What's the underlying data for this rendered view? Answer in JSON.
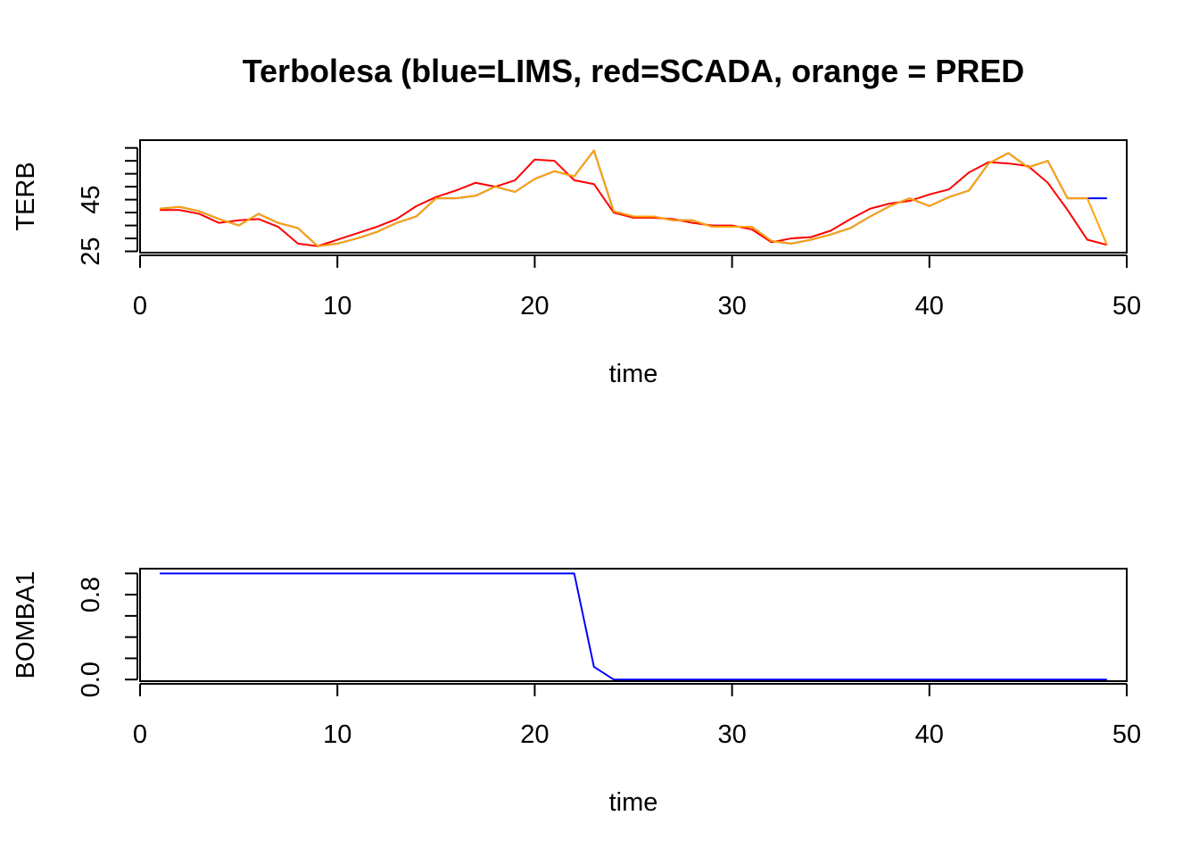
{
  "title": "Terbolesa (blue=LIMS, red=SCADA, orange = PRED",
  "chart_data": [
    {
      "type": "line",
      "xlabel": "time",
      "ylabel": "TERB",
      "xlim": [
        0,
        50
      ],
      "ylim": [
        24.5,
        68
      ],
      "xticks": [
        0,
        10,
        20,
        30,
        40,
        50
      ],
      "yticks": [
        25,
        30,
        35,
        40,
        45,
        50,
        55,
        60,
        65
      ],
      "ytick_labels": [
        {
          "value": 25,
          "label": "25"
        },
        {
          "value": 45,
          "label": "45"
        }
      ],
      "x": [
        1,
        2,
        3,
        4,
        5,
        6,
        7,
        8,
        9,
        10,
        11,
        12,
        13,
        14,
        15,
        16,
        17,
        18,
        19,
        20,
        21,
        22,
        23,
        24,
        25,
        26,
        27,
        28,
        29,
        30,
        31,
        32,
        33,
        34,
        35,
        36,
        37,
        38,
        39,
        40,
        41,
        42,
        43,
        44,
        45,
        46,
        47,
        48,
        49
      ],
      "series": [
        {
          "name": "LIMS",
          "color": "#0000ff",
          "values": [
            41.5,
            42.2,
            40.5,
            37.5,
            35,
            39.5,
            36,
            34,
            27,
            28,
            30,
            32.5,
            36,
            38.5,
            45.5,
            45.5,
            46.5,
            50,
            48,
            53,
            56,
            54,
            64,
            40.5,
            38.5,
            38.5,
            37,
            37,
            34.5,
            34.5,
            34.5,
            29,
            28,
            29.5,
            31.5,
            34,
            38.5,
            42.5,
            45.5,
            42.5,
            46,
            48.5,
            59,
            63,
            57.5,
            60,
            45.5,
            45.5,
            45.5
          ]
        },
        {
          "name": "SCADA",
          "color": "#ff0000",
          "values": [
            41,
            41,
            39.5,
            36,
            37,
            37.5,
            34.5,
            28,
            27,
            29.5,
            32,
            34.5,
            37.5,
            42.5,
            46,
            48.5,
            51.5,
            50,
            52.5,
            60.5,
            60,
            52.5,
            51,
            40,
            38,
            38,
            37.5,
            36,
            35,
            35,
            33.5,
            28.5,
            30,
            30.5,
            33,
            37.5,
            41.5,
            43.5,
            44.5,
            47,
            49,
            55.5,
            59.5,
            59,
            58,
            51.5,
            41,
            29.5,
            27.5
          ]
        },
        {
          "name": "PRED",
          "color": "#ffa500",
          "values": [
            41.5,
            42.2,
            40.5,
            37.5,
            35,
            39.5,
            36,
            34,
            27,
            28,
            30,
            32.5,
            36,
            38.5,
            45.5,
            45.5,
            46.5,
            50,
            48,
            53,
            56,
            54,
            64,
            40.5,
            38.5,
            38.5,
            37,
            37,
            34.5,
            34.5,
            34.5,
            29,
            28,
            29.5,
            31.5,
            34,
            38.5,
            42.5,
            45.5,
            42.5,
            46,
            48.5,
            59,
            63,
            57.5,
            60,
            45.5,
            45.5,
            27.5
          ]
        }
      ]
    },
    {
      "type": "line",
      "xlabel": "time",
      "ylabel": "BOMBA1",
      "xlim": [
        0,
        50
      ],
      "ylim": [
        -0.015,
        1.045
      ],
      "xticks": [
        0,
        10,
        20,
        30,
        40,
        50
      ],
      "yticks": [
        0,
        0.2,
        0.4,
        0.6,
        0.8,
        1.0
      ],
      "ytick_labels": [
        {
          "value": 0,
          "label": "0.0"
        },
        {
          "value": 0.8,
          "label": "0.8"
        }
      ],
      "x": [
        1,
        2,
        3,
        4,
        5,
        6,
        7,
        8,
        9,
        10,
        11,
        12,
        13,
        14,
        15,
        16,
        17,
        18,
        19,
        20,
        21,
        22,
        23,
        24,
        25,
        26,
        27,
        28,
        29,
        30,
        31,
        32,
        33,
        34,
        35,
        36,
        37,
        38,
        39,
        40,
        41,
        42,
        43,
        44,
        45,
        46,
        47,
        48,
        49
      ],
      "series": [
        {
          "name": "BOMBA1",
          "color": "#0000ff",
          "values": [
            1,
            1,
            1,
            1,
            1,
            1,
            1,
            1,
            1,
            1,
            1,
            1,
            1,
            1,
            1,
            1,
            1,
            1,
            1,
            1,
            1,
            1,
            0.12,
            0,
            0,
            0,
            0,
            0,
            0,
            0,
            0,
            0,
            0,
            0,
            0,
            0,
            0,
            0,
            0,
            0,
            0,
            0,
            0,
            0,
            0,
            0,
            0,
            0,
            0
          ]
        }
      ]
    }
  ]
}
